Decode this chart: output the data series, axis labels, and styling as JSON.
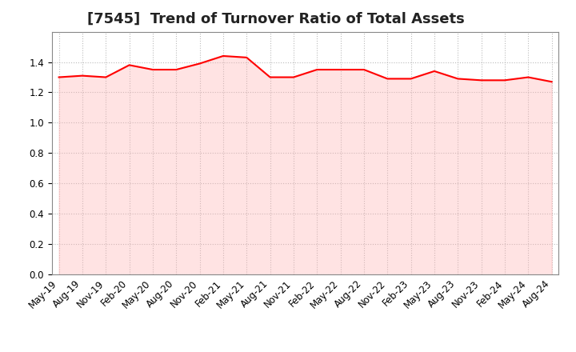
{
  "title": "[7545]  Trend of Turnover Ratio of Total Assets",
  "x_labels": [
    "May-19",
    "Aug-19",
    "Nov-19",
    "Feb-20",
    "May-20",
    "Aug-20",
    "Nov-20",
    "Feb-21",
    "May-21",
    "Aug-21",
    "Nov-21",
    "Feb-22",
    "May-22",
    "Aug-22",
    "Nov-22",
    "Feb-23",
    "May-23",
    "Aug-23",
    "Nov-23",
    "Feb-24",
    "May-24",
    "Aug-24"
  ],
  "values": [
    1.3,
    1.31,
    1.3,
    1.38,
    1.35,
    1.35,
    1.39,
    1.44,
    1.43,
    1.3,
    1.3,
    1.35,
    1.35,
    1.35,
    1.29,
    1.29,
    1.34,
    1.29,
    1.28,
    1.28,
    1.3,
    1.27
  ],
  "line_color": "#ff0000",
  "fill_color": "#ffb0b0",
  "fill_alpha": 0.35,
  "ylim": [
    0.0,
    1.6
  ],
  "yticks": [
    0.0,
    0.2,
    0.4,
    0.6,
    0.8,
    1.0,
    1.2,
    1.4
  ],
  "grid_color": "#bbbbbb",
  "background_color": "#ffffff",
  "title_fontsize": 13,
  "tick_fontsize": 8.5
}
